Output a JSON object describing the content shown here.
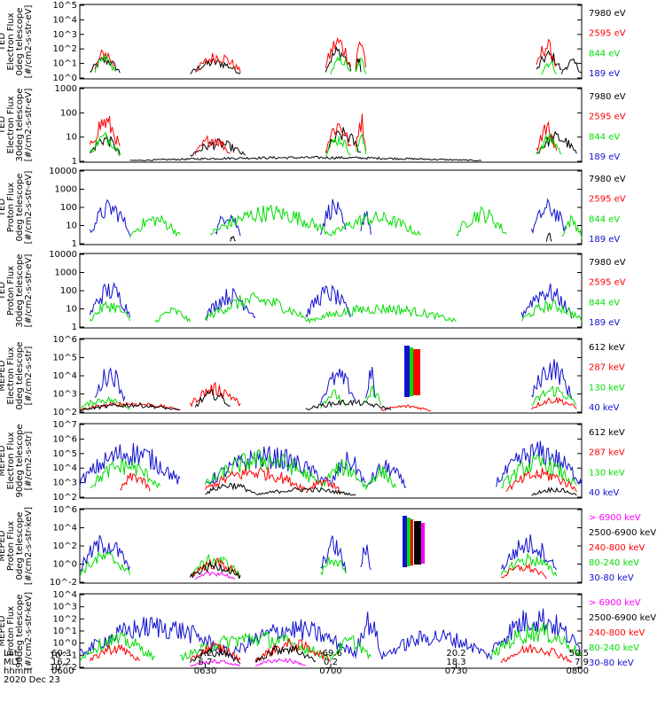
{
  "colors": {
    "blue": "#1010d0",
    "red": "#ff0000",
    "green": "#00dd00",
    "black": "#000000",
    "magenta": "#ff00ff"
  },
  "chart_data": [
    {
      "type": "line",
      "ylabel": [
        "TED",
        "Electron Flux",
        "0deg telescope",
        "[#/cm2-s-str-eV]"
      ],
      "yticks": [
        "10^0",
        "10^1",
        "10^2",
        "10^3",
        "10^4",
        "10^5"
      ],
      "ylim_exp": [
        0,
        5
      ],
      "legend": [
        {
          "label": "7980 eV",
          "color": "#000000"
        },
        {
          "label": "2595 eV",
          "color": "#ff0000"
        },
        {
          "label": "844 eV",
          "color": "#00dd00"
        },
        {
          "label": "189 eV",
          "color": "#1010d0"
        }
      ],
      "series": [
        {
          "name": "7980 eV",
          "color": "#000000",
          "bursts": [
            [
              0.02,
              0.08,
              1.6
            ],
            [
              0.22,
              0.32,
              1.4
            ],
            [
              0.49,
              0.54,
              2.3
            ],
            [
              0.55,
              0.56,
              1.8
            ],
            [
              0.91,
              0.96,
              2.0
            ],
            [
              0.96,
              1.0,
              1.4
            ]
          ]
        },
        {
          "name": "2595 eV",
          "color": "#ff0000",
          "bursts": [
            [
              0.03,
              0.07,
              2.2
            ],
            [
              0.23,
              0.32,
              1.9
            ],
            [
              0.49,
              0.54,
              3.1
            ],
            [
              0.55,
              0.57,
              3.2
            ],
            [
              0.91,
              0.95,
              2.8
            ]
          ]
        },
        {
          "name": "844 eV",
          "color": "#00dd00",
          "bursts": [
            [
              0.03,
              0.07,
              1.7
            ],
            [
              0.5,
              0.54,
              1.6
            ],
            [
              0.55,
              0.57,
              1.5
            ],
            [
              0.92,
              0.95,
              1.4
            ]
          ]
        }
      ]
    },
    {
      "type": "line",
      "ylabel": [
        "TED",
        "Electron Flux",
        "30deg telescope",
        "[#/cm2-s-str-eV]"
      ],
      "yticks": [
        "1",
        "10",
        "100",
        "1000"
      ],
      "ylim_exp": [
        0,
        3.8
      ],
      "legend": [
        {
          "label": "7980 eV",
          "color": "#000000"
        },
        {
          "label": "2595 eV",
          "color": "#ff0000"
        },
        {
          "label": "844 eV",
          "color": "#00dd00"
        },
        {
          "label": "189 eV",
          "color": "#1010d0"
        }
      ],
      "series": [
        {
          "name": "7980 eV",
          "color": "#000000",
          "bursts": [
            [
              0.02,
              0.08,
              1.5
            ],
            [
              0.1,
              0.8,
              0.3
            ],
            [
              0.22,
              0.33,
              1.2
            ],
            [
              0.49,
              0.56,
              1.8
            ],
            [
              0.91,
              0.99,
              1.6
            ]
          ]
        },
        {
          "name": "2595 eV",
          "color": "#ff0000",
          "bursts": [
            [
              0.02,
              0.08,
              2.6
            ],
            [
              0.23,
              0.3,
              1.5
            ],
            [
              0.49,
              0.54,
              2.4
            ],
            [
              0.55,
              0.57,
              2.7
            ],
            [
              0.91,
              0.95,
              2.2
            ]
          ]
        },
        {
          "name": "844 eV",
          "color": "#00dd00",
          "bursts": [
            [
              0.02,
              0.08,
              1.6
            ],
            [
              0.49,
              0.54,
              1.5
            ],
            [
              0.55,
              0.57,
              1.6
            ],
            [
              0.91,
              0.96,
              1.5
            ]
          ]
        }
      ]
    },
    {
      "type": "line",
      "ylabel": [
        "TED",
        "Proton Flux",
        "0deg telescope",
        "[#/cm2-s-str-eV]"
      ],
      "yticks": [
        "1",
        "10",
        "100",
        "1000",
        "10000"
      ],
      "ylim_exp": [
        0,
        4.2
      ],
      "legend": [
        {
          "label": "7980 eV",
          "color": "#000000"
        },
        {
          "label": "2595 eV",
          "color": "#ff0000"
        },
        {
          "label": "844 eV",
          "color": "#00dd00"
        },
        {
          "label": "189 eV",
          "color": "#1010d0"
        }
      ],
      "series": [
        {
          "name": "189 eV",
          "color": "#1010d0",
          "bursts": [
            [
              0.02,
              0.1,
              2.6
            ],
            [
              0.27,
              0.32,
              2.2
            ],
            [
              0.48,
              0.53,
              2.7
            ],
            [
              0.56,
              0.58,
              2.4
            ],
            [
              0.9,
              0.97,
              2.6
            ]
          ]
        },
        {
          "name": "844 eV",
          "color": "#00dd00",
          "bursts": [
            [
              0.1,
              0.2,
              1.8
            ],
            [
              0.26,
              0.5,
              2.3
            ],
            [
              0.5,
              0.68,
              1.9
            ],
            [
              0.75,
              0.85,
              2.2
            ],
            [
              0.96,
              1.0,
              1.7
            ]
          ]
        },
        {
          "name": "7980 eV",
          "color": "#000000",
          "bursts": [
            [
              0.3,
              0.31,
              0.6
            ],
            [
              0.93,
              0.94,
              0.7
            ]
          ]
        }
      ]
    },
    {
      "type": "line",
      "ylabel": [
        "TED",
        "Proton Flux",
        "30deg telescope",
        "[#/cm2-s-str-eV]"
      ],
      "yticks": [
        "1",
        "10",
        "100",
        "1000",
        "10000"
      ],
      "ylim_exp": [
        0,
        4.2
      ],
      "legend": [
        {
          "label": "7980 eV",
          "color": "#000000"
        },
        {
          "label": "2595 eV",
          "color": "#ff0000"
        },
        {
          "label": "844 eV",
          "color": "#00dd00"
        },
        {
          "label": "189 eV",
          "color": "#1010d0"
        }
      ],
      "series": [
        {
          "name": "189 eV",
          "color": "#1010d0",
          "bursts": [
            [
              0.02,
              0.1,
              2.7
            ],
            [
              0.25,
              0.35,
              2.3
            ],
            [
              0.45,
              0.54,
              2.5
            ],
            [
              0.88,
              0.98,
              2.6
            ]
          ]
        },
        {
          "name": "844 eV",
          "color": "#00dd00",
          "bursts": [
            [
              0.02,
              0.1,
              1.6
            ],
            [
              0.15,
              0.22,
              1.2
            ],
            [
              0.25,
              0.45,
              2.0
            ],
            [
              0.45,
              0.75,
              1.4
            ],
            [
              0.88,
              1.0,
              1.6
            ]
          ]
        }
      ]
    },
    {
      "type": "line",
      "ylabel": [
        "MEPED",
        "Electron Flux",
        "0deg telescope",
        "[#/cm2-s-str]"
      ],
      "yticks": [
        "10^2",
        "10^3",
        "10^4",
        "10^5",
        "10^6"
      ],
      "ylim_exp": [
        1.8,
        6.2
      ],
      "legend": [
        {
          "label": "612 keV",
          "color": "#000000"
        },
        {
          "label": "287 keV",
          "color": "#ff0000"
        },
        {
          "label": "130 keV",
          "color": "#00dd00"
        },
        {
          "label": "40 keV",
          "color": "#1010d0"
        }
      ],
      "series": [
        {
          "name": "40 keV",
          "color": "#1010d0",
          "bursts": [
            [
              0.03,
              0.09,
              4.8
            ],
            [
              0.48,
              0.55,
              4.5
            ],
            [
              0.57,
              0.59,
              4.7
            ],
            [
              0.9,
              0.98,
              5.2
            ]
          ]
        },
        {
          "name": "130 keV",
          "color": "#00dd00",
          "bursts": [
            [
              0.0,
              0.1,
              2.8
            ],
            [
              0.48,
              0.53,
              3.2
            ],
            [
              0.57,
              0.6,
              3.5
            ],
            [
              0.9,
              0.99,
              3.5
            ]
          ]
        },
        {
          "name": "287 keV",
          "color": "#ff0000",
          "bursts": [
            [
              0.0,
              0.2,
              2.5
            ],
            [
              0.22,
              0.32,
              3.6
            ],
            [
              0.6,
              0.7,
              2.3
            ],
            [
              0.9,
              0.99,
              2.8
            ]
          ]
        },
        {
          "name": "612 keV",
          "color": "#000000",
          "bursts": [
            [
              0.0,
              0.2,
              2.4
            ],
            [
              0.23,
              0.3,
              3.2
            ],
            [
              0.45,
              0.62,
              2.6
            ]
          ]
        }
      ]
    },
    {
      "type": "line",
      "ylabel": [
        "MEPED",
        "Electron Flux",
        "90deg telescope",
        "[#/cm2-s-str]"
      ],
      "yticks": [
        "10^2",
        "10^3",
        "10^4",
        "10^5",
        "10^6",
        "10^7"
      ],
      "ylim_exp": [
        1.8,
        7.2
      ],
      "legend": [
        {
          "label": "612 keV",
          "color": "#000000"
        },
        {
          "label": "287 keV",
          "color": "#ff0000"
        },
        {
          "label": "130 keV",
          "color": "#00dd00"
        },
        {
          "label": "40 keV",
          "color": "#1010d0"
        }
      ],
      "series": [
        {
          "name": "40 keV",
          "color": "#1010d0",
          "bursts": [
            [
              0.0,
              0.2,
              6.0
            ],
            [
              0.25,
              0.5,
              5.6
            ],
            [
              0.5,
              0.57,
              5.2
            ],
            [
              0.57,
              0.65,
              4.6
            ],
            [
              0.83,
              1.0,
              6.0
            ]
          ]
        },
        {
          "name": "130 keV",
          "color": "#00dd00",
          "bursts": [
            [
              0.02,
              0.16,
              4.8
            ],
            [
              0.25,
              0.48,
              5.4
            ],
            [
              0.48,
              0.57,
              4.6
            ],
            [
              0.57,
              0.63,
              4.2
            ],
            [
              0.84,
              0.99,
              5.0
            ]
          ]
        },
        {
          "name": "287 keV",
          "color": "#ff0000",
          "bursts": [
            [
              0.08,
              0.14,
              3.8
            ],
            [
              0.25,
              0.45,
              4.2
            ],
            [
              0.45,
              0.52,
              3.4
            ],
            [
              0.85,
              0.99,
              4.0
            ]
          ]
        },
        {
          "name": "612 keV",
          "color": "#000000",
          "bursts": [
            [
              0.25,
              0.35,
              3.0
            ],
            [
              0.35,
              0.55,
              2.6
            ],
            [
              0.9,
              0.99,
              2.6
            ]
          ]
        }
      ]
    },
    {
      "type": "line",
      "ylabel": [
        "MEPED",
        "Proton Flux",
        "0deg telescope",
        "[#/cm2-s-str-keV]"
      ],
      "yticks": [
        "10^-2",
        "10^0",
        "10^2",
        "10^4",
        "10^6"
      ],
      "ylim_exp": [
        -2.3,
        6.2
      ],
      "legend": [
        {
          "label": "> 6900 keV",
          "color": "#ff00ff"
        },
        {
          "label": "2500-6900 keV",
          "color": "#000000"
        },
        {
          "label": "240-800 keV",
          "color": "#ff0000"
        },
        {
          "label": "80-240 keV",
          "color": "#00dd00"
        },
        {
          "label": "30-80 keV",
          "color": "#1010d0"
        }
      ],
      "series": [
        {
          "name": "30-80 keV",
          "color": "#1010d0",
          "bursts": [
            [
              0.0,
              0.1,
              3.5
            ],
            [
              0.48,
              0.53,
              3.2
            ],
            [
              0.56,
              0.58,
              3.0
            ],
            [
              0.84,
              0.95,
              3.4
            ]
          ]
        },
        {
          "name": "80-240 keV",
          "color": "#00dd00",
          "bursts": [
            [
              0.0,
              0.1,
              1.5
            ],
            [
              0.22,
              0.32,
              1.1
            ],
            [
              0.48,
              0.53,
              1.3
            ],
            [
              0.84,
              0.95,
              1.2
            ]
          ]
        },
        {
          "name": "240-800 keV",
          "color": "#ff0000",
          "bursts": [
            [
              0.22,
              0.32,
              0.6
            ],
            [
              0.84,
              0.93,
              0.0
            ]
          ]
        },
        {
          "name": "2500-6900 keV",
          "color": "#000000",
          "bursts": [
            [
              0.22,
              0.32,
              0.2
            ]
          ]
        },
        {
          "name": "> 6900 keV",
          "color": "#ff00ff",
          "bursts": [
            [
              0.23,
              0.31,
              -0.8
            ]
          ]
        }
      ]
    },
    {
      "type": "line",
      "ylabel": [
        "MEPED",
        "Proton Flux",
        "90deg telescope",
        "[#/cm2-s-str-keV]"
      ],
      "yticks": [
        "10^-2",
        "10^-1",
        "10^0",
        "10^1",
        "10^2",
        "10^3",
        "10^4"
      ],
      "ylim_exp": [
        -2.2,
        4.8
      ],
      "legend": [
        {
          "label": "> 6900 keV",
          "color": "#ff00ff"
        },
        {
          "label": "2500-6900 keV",
          "color": "#000000"
        },
        {
          "label": "240-800 keV",
          "color": "#ff0000"
        },
        {
          "label": "80-240 keV",
          "color": "#00dd00"
        },
        {
          "label": "30-80 keV",
          "color": "#1010d0"
        }
      ],
      "series": [
        {
          "name": "30-80 keV",
          "color": "#1010d0",
          "bursts": [
            [
              0.0,
              0.3,
              2.8
            ],
            [
              0.3,
              0.55,
              2.5
            ],
            [
              0.55,
              0.6,
              3.3
            ],
            [
              0.6,
              0.82,
              1.6
            ],
            [
              0.82,
              1.0,
              3.8
            ]
          ]
        },
        {
          "name": "80-240 keV",
          "color": "#00dd00",
          "bursts": [
            [
              0.0,
              0.15,
              1.2
            ],
            [
              0.2,
              0.5,
              1.4
            ],
            [
              0.5,
              0.58,
              1.0
            ],
            [
              0.82,
              1.0,
              2.2
            ]
          ]
        },
        {
          "name": "240-800 keV",
          "color": "#ff0000",
          "bursts": [
            [
              0.02,
              0.12,
              0.2
            ],
            [
              0.22,
              0.32,
              0.3
            ],
            [
              0.35,
              0.5,
              0.6
            ],
            [
              0.84,
              0.98,
              0.2
            ]
          ]
        },
        {
          "name": "2500-6900 keV",
          "color": "#000000",
          "bursts": [
            [
              0.22,
              0.32,
              -0.2
            ],
            [
              0.35,
              0.47,
              0.2
            ]
          ]
        },
        {
          "name": "> 6900 keV",
          "color": "#ff00ff",
          "bursts": [
            [
              0.22,
              0.32,
              -1.4
            ],
            [
              0.35,
              0.45,
              -1.2
            ]
          ]
        }
      ]
    }
  ],
  "xaxis": {
    "row_labels": [
      "Lat",
      "MLT",
      "hhmm",
      "2020 Dec 23"
    ],
    "ticks": [
      {
        "lat": "60.3",
        "mlt": "16.2",
        "hhmm": "0600"
      },
      {
        "lat": "7.2",
        "mlt": "6.7",
        "hhmm": "0630"
      },
      {
        "lat": "-69.6",
        "mlt": "0.2",
        "hhmm": "0700"
      },
      {
        "lat": "20.2",
        "mlt": "18.3",
        "hhmm": "0730"
      },
      {
        "lat": "50.5",
        "mlt": "7.9",
        "hhmm": "0800"
      }
    ]
  }
}
